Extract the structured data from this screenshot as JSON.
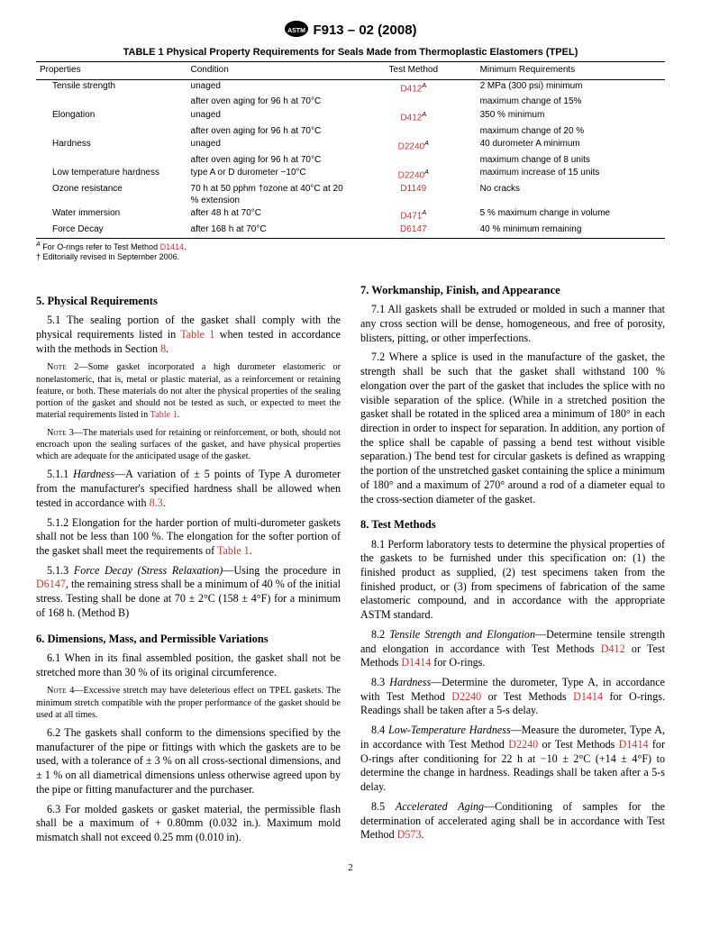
{
  "header": {
    "designation": "F913 – 02 (2008)"
  },
  "table": {
    "caption": "TABLE 1 Physical Property Requirements for Seals Made from Thermoplastic Elastomers (TPEL)",
    "columns": [
      "Properties",
      "Condition",
      "Test Method",
      "Minimum Requirements"
    ],
    "rows": [
      {
        "prop": "Tensile strength",
        "cond": "unaged",
        "method": "D412",
        "methodSup": "A",
        "req": "2 MPa (300 psi) minimum"
      },
      {
        "prop": "",
        "cond": "after oven aging for 96 h at 70°C",
        "method": "",
        "methodSup": "",
        "req": "maximum change of 15%"
      },
      {
        "prop": "Elongation",
        "cond": "unaged",
        "method": "D412",
        "methodSup": "A",
        "req": "350 % minimum"
      },
      {
        "prop": "",
        "cond": "after oven aging for 96 h at 70°C",
        "method": "",
        "methodSup": "",
        "req": "maximum change of 20 %"
      },
      {
        "prop": "Hardness",
        "cond": "unaged",
        "method": "D2240",
        "methodSup": "A",
        "req": "40 durometer A minimum"
      },
      {
        "prop": "",
        "cond": "after oven aging for 96 h at 70°C",
        "method": "",
        "methodSup": "",
        "req": "maximum change of 8 units"
      },
      {
        "prop": "Low temperature hardness",
        "cond": "type A or D durometer −10°C",
        "method": "D2240",
        "methodSup": "A",
        "req": "maximum increase of 15 units"
      },
      {
        "prop": "Ozone resistance",
        "cond": "70 h at 50 pphm †ozone at 40°C at 20 % extension",
        "method": "D1149",
        "methodSup": "",
        "req": "No cracks"
      },
      {
        "prop": "Water immersion",
        "cond": "after 48 h at 70°C",
        "method": "D471",
        "methodSup": "A",
        "req": "5 % maximum change in volume"
      },
      {
        "prop": "Force Decay",
        "cond": "after 168 h at 70°C",
        "method": "D6147",
        "methodSup": "",
        "req": "40 % minimum remaining"
      }
    ],
    "footnote_A_pre": " For O-rings refer to Test Method ",
    "footnote_A_link": "D1414",
    "footnote_A_post": ".",
    "footnote_dagger": " Editorially revised in September 2006."
  },
  "sections": {
    "s5_title": "5.  Physical Requirements",
    "s5_1a": "5.1  The sealing portion of the gasket shall comply with the physical requirements listed in ",
    "s5_1b": " when tested in accordance with the methods in Section ",
    "s5_1c": ".",
    "link_table1": "Table 1",
    "link_sec8": "8",
    "note2_label": "Note",
    "note2_a": " 2—Some gasket incorporated a high durometer elastomeric or nonelastomeric, that is, metal or plastic material, as a reinforcement or retaining feature, or both. These materials do not alter the physical properties of the sealing portion of the gasket and should not be tested as such, or expected to meet the material requirements listed in ",
    "note2_b": ".",
    "note3_label": "Note",
    "note3": " 3—The materials used for retaining or reinforcement, or both, should not encroach upon the sealing surfaces of the gasket, and have physical properties which are adequate for the anticipated usage of the gasket.",
    "s5_1_1a": "5.1.1 ",
    "s5_1_1_i": "Hardness",
    "s5_1_1b": "—A variation of ± 5 points of Type A durometer from the manufacturer's specified hardness shall be allowed when tested in accordance with ",
    "s5_1_1c": ".",
    "link_8_3": "8.3",
    "s5_1_2a": "5.1.2  Elongation for the harder portion of multi-durometer gaskets shall not be less than 100 %. The elongation for the softer portion of the gasket shall meet the requirements of ",
    "s5_1_2b": ".",
    "s5_1_3a": "5.1.3 ",
    "s5_1_3_i": "Force Decay (Stress Relaxation)",
    "s5_1_3b": "—Using the procedure in ",
    "s5_1_3c": ", the remaining stress shall be a minimum of 40 % of the initial stress. Testing shall be done at 70 ± 2°C (158 ± 4°F) for a minimum of 168 h. (Method B)",
    "link_D6147": "D6147",
    "s6_title": "6.  Dimensions, Mass, and Permissible Variations",
    "s6_1": "6.1  When in its final assembled position, the gasket shall not be stretched more than 30 % of its original circumference.",
    "note4_label": "Note",
    "note4": " 4—Excessive stretch may have deleterious effect on TPEL gaskets. The minimum stretch compatible with the proper performance of the gasket should be used at all times.",
    "s6_2": "6.2  The gaskets shall conform to the dimensions specified by the manufacturer of the pipe or fittings with which the gaskets are to be used, with a tolerance of ± 3 % on all cross-sectional dimensions, and ± 1 % on all diametrical dimensions unless otherwise agreed upon by the pipe or fitting manufacturer and the purchaser.",
    "s6_3": "6.3  For molded gaskets or gasket material, the permissible flash shall be a maximum of + 0.80mm (0.032 in.). Maximum mold mismatch shall not exceed 0.25 mm (0.010 in).",
    "s7_title": "7.  Workmanship, Finish, and Appearance",
    "s7_1": "7.1  All gaskets shall be extruded or molded in such a manner that any cross section will be dense, homogeneous, and free of porosity, blisters, pitting, or other imperfections.",
    "s7_2": "7.2  Where a splice is used in the manufacture of the gasket, the strength shall be such that the gasket shall withstand 100 % elongation over the part of the gasket that includes the splice with no visible separation of the splice. (While in a stretched position the gasket shall be rotated in the spliced area a minimum of 180° in each direction in order to inspect for separation. In addition, any portion of the splice shall be capable of passing a bend test without visible separation.) The bend test for circular gaskets is defined as wrapping the portion of the unstretched gasket containing the splice a minimum of 180° and a maximum of 270° around a rod of a diameter equal to the cross-section diameter of the gasket.",
    "s8_title": "8.  Test Methods",
    "s8_1": "8.1  Perform laboratory tests to determine the physical properties of the gaskets to be furnished under this specification on: (1) the finished product as supplied, (2) test specimens taken from the finished product, or (3) from specimens of fabrication of the same elastomeric compound, and in accordance with the appropriate ASTM standard.",
    "s8_2a": "8.2 ",
    "s8_2_i": "Tensile Strength and Elongation",
    "s8_2b": "—Determine tensile strength and elongation in accordance with Test Methods ",
    "s8_2c": " or Test Methods ",
    "s8_2d": " for O-rings.",
    "link_D412": "D412",
    "link_D1414": "D1414",
    "s8_3a": "8.3 ",
    "s8_3_i": "Hardness",
    "s8_3b": "—Determine the durometer, Type A, in accordance with Test Method ",
    "s8_3c": " or Test Methods ",
    "s8_3d": " for O-rings. Readings shall be taken after a 5-s delay.",
    "link_D2240": "D2240",
    "s8_4a": "8.4 ",
    "s8_4_i": "Low-Temperature Hardness",
    "s8_4b": "—Measure the durometer, Type A, in accordance with Test Method ",
    "s8_4c": " or Test Methods ",
    "s8_4d": " for O-rings after conditioning for 22 h at −10 ± 2°C (+14 ± 4°F) to determine the change in hardness. Readings shall be taken after a 5-s delay.",
    "s8_5a": "8.5 ",
    "s8_5_i": "Accelerated Aging",
    "s8_5b": "—Conditioning of samples for the determination of accelerated aging shall be in accordance with Test Method ",
    "s8_5c": ".",
    "link_D573": "D573"
  },
  "pageNumber": "2",
  "style": {
    "linkColor": "#cc3333",
    "bodyFontSize": 12.1,
    "tableFontSize": 10
  }
}
